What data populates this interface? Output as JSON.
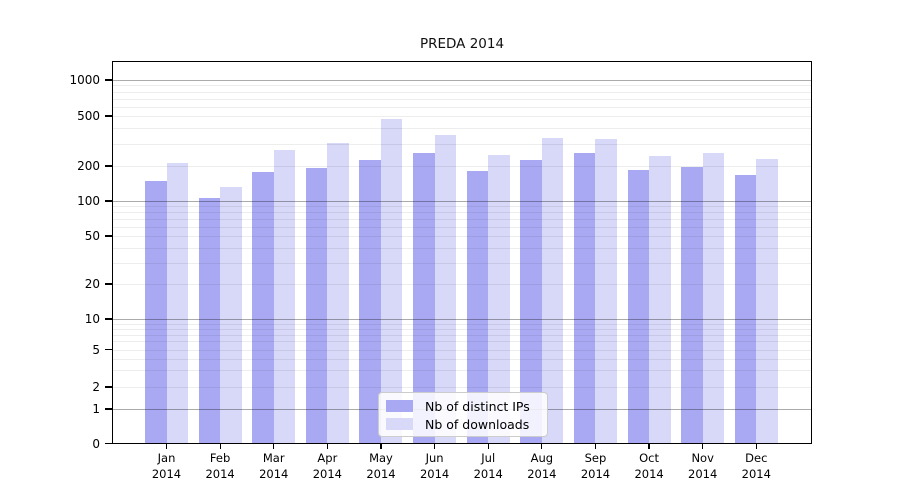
{
  "chart_data": {
    "type": "bar",
    "title": "PREDA 2014",
    "categories": [
      {
        "month": "Jan",
        "year": "2014"
      },
      {
        "month": "Feb",
        "year": "2014"
      },
      {
        "month": "Mar",
        "year": "2014"
      },
      {
        "month": "Apr",
        "year": "2014"
      },
      {
        "month": "May",
        "year": "2014"
      },
      {
        "month": "Jun",
        "year": "2014"
      },
      {
        "month": "Jul",
        "year": "2014"
      },
      {
        "month": "Aug",
        "year": "2014"
      },
      {
        "month": "Sep",
        "year": "2014"
      },
      {
        "month": "Oct",
        "year": "2014"
      },
      {
        "month": "Nov",
        "year": "2014"
      },
      {
        "month": "Dec",
        "year": "2014"
      }
    ],
    "series": [
      {
        "name": "Nb of distinct IPs",
        "color": "#a9a9f3",
        "values": [
          150,
          106,
          177,
          193,
          225,
          256,
          182,
          224,
          252,
          186,
          196,
          168
        ]
      },
      {
        "name": "Nb of downloads",
        "color": "#d8d8f8",
        "values": [
          212,
          131,
          268,
          306,
          470,
          350,
          246,
          336,
          327,
          242,
          255,
          226
        ]
      }
    ],
    "y_axis": {
      "scale": "symlog",
      "ticks": [
        0,
        1,
        2,
        5,
        10,
        20,
        50,
        100,
        200,
        500,
        1000
      ],
      "ylim": [
        0,
        1100
      ]
    },
    "x_axis": {
      "tick_label_format": "Month over year, two lines"
    },
    "legend": {
      "position": "inside lower-center",
      "labels": [
        "Nb of distinct IPs",
        "Nb of downloads"
      ]
    },
    "grid": {
      "major": true,
      "minor": true,
      "minor_values_per_decade": [
        2,
        3,
        4,
        5,
        6,
        7,
        8,
        9
      ]
    }
  }
}
